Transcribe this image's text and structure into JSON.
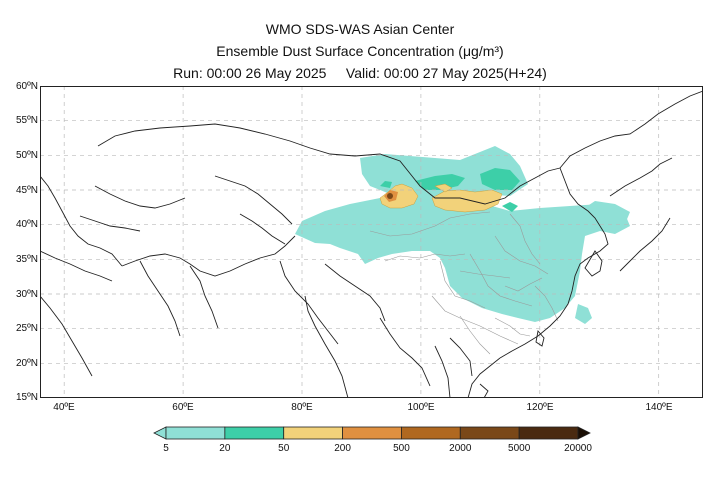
{
  "title": {
    "line1": "WMO SDS-WAS Asian Center",
    "line2": "Ensemble Dust Surface Concentration (μg/m³)",
    "line3": "Run: 00:00 26 May 2025     Valid: 00:00 27 May 2025(H+24)"
  },
  "axes": {
    "lat_labels": [
      "60ºN",
      "55ºN",
      "50ºN",
      "45ºN",
      "40ºN",
      "35ºN",
      "30ºN",
      "25ºN",
      "20ºN",
      "15ºN"
    ],
    "lon_labels": [
      "40ºE",
      "60ºE",
      "80ºE",
      "100ºE",
      "120ºE",
      "140ºE"
    ]
  },
  "colorbar": {
    "thresholds": [
      "5",
      "20",
      "50",
      "200",
      "500",
      "2000",
      "5000",
      "20000"
    ],
    "colors": [
      "#8fe0d6",
      "#3dcfa8",
      "#f2d27a",
      "#e09040",
      "#b06820",
      "#7a4818",
      "#4a2a10",
      "#2a1808",
      "#1a0e04"
    ]
  },
  "colors": {
    "land_outline": "#222222",
    "china_provinces": "#999999",
    "gridlines": "#bbbbbb"
  }
}
